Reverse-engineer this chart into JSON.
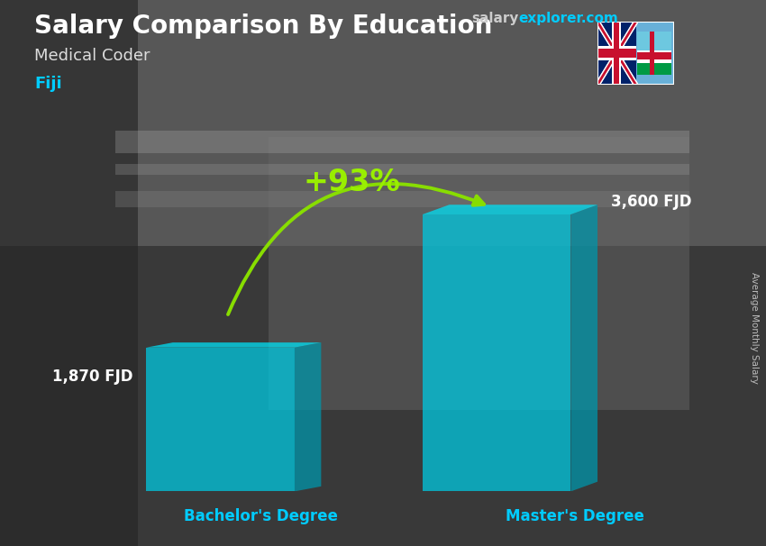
{
  "title_main": "Salary Comparison By Education",
  "title_sub": "Medical Coder",
  "title_country": "Fiji",
  "site_salary": "salary",
  "site_explorer": "explorer.com",
  "ylabel": "Average Monthly Salary",
  "categories": [
    "Bachelor's Degree",
    "Master's Degree"
  ],
  "values": [
    1870,
    3600
  ],
  "labels": [
    "1,870 FJD",
    "3,600 FJD"
  ],
  "pct_change": "+93%",
  "bar_color_front": "#00c8e0",
  "bar_color_top": "#00e0f5",
  "bar_color_side": "#0095aa",
  "bg_color": "#555555",
  "title_color": "#ffffff",
  "subtitle_color": "#dddddd",
  "country_color": "#00ccff",
  "label_color": "#ffffff",
  "xlabel_color": "#00ccff",
  "pct_color": "#99ee00",
  "arrow_color": "#88dd00",
  "bar_alpha": 0.75,
  "ylim": [
    0,
    4400
  ],
  "positions": [
    0.27,
    0.68
  ],
  "bar_width": 0.22
}
